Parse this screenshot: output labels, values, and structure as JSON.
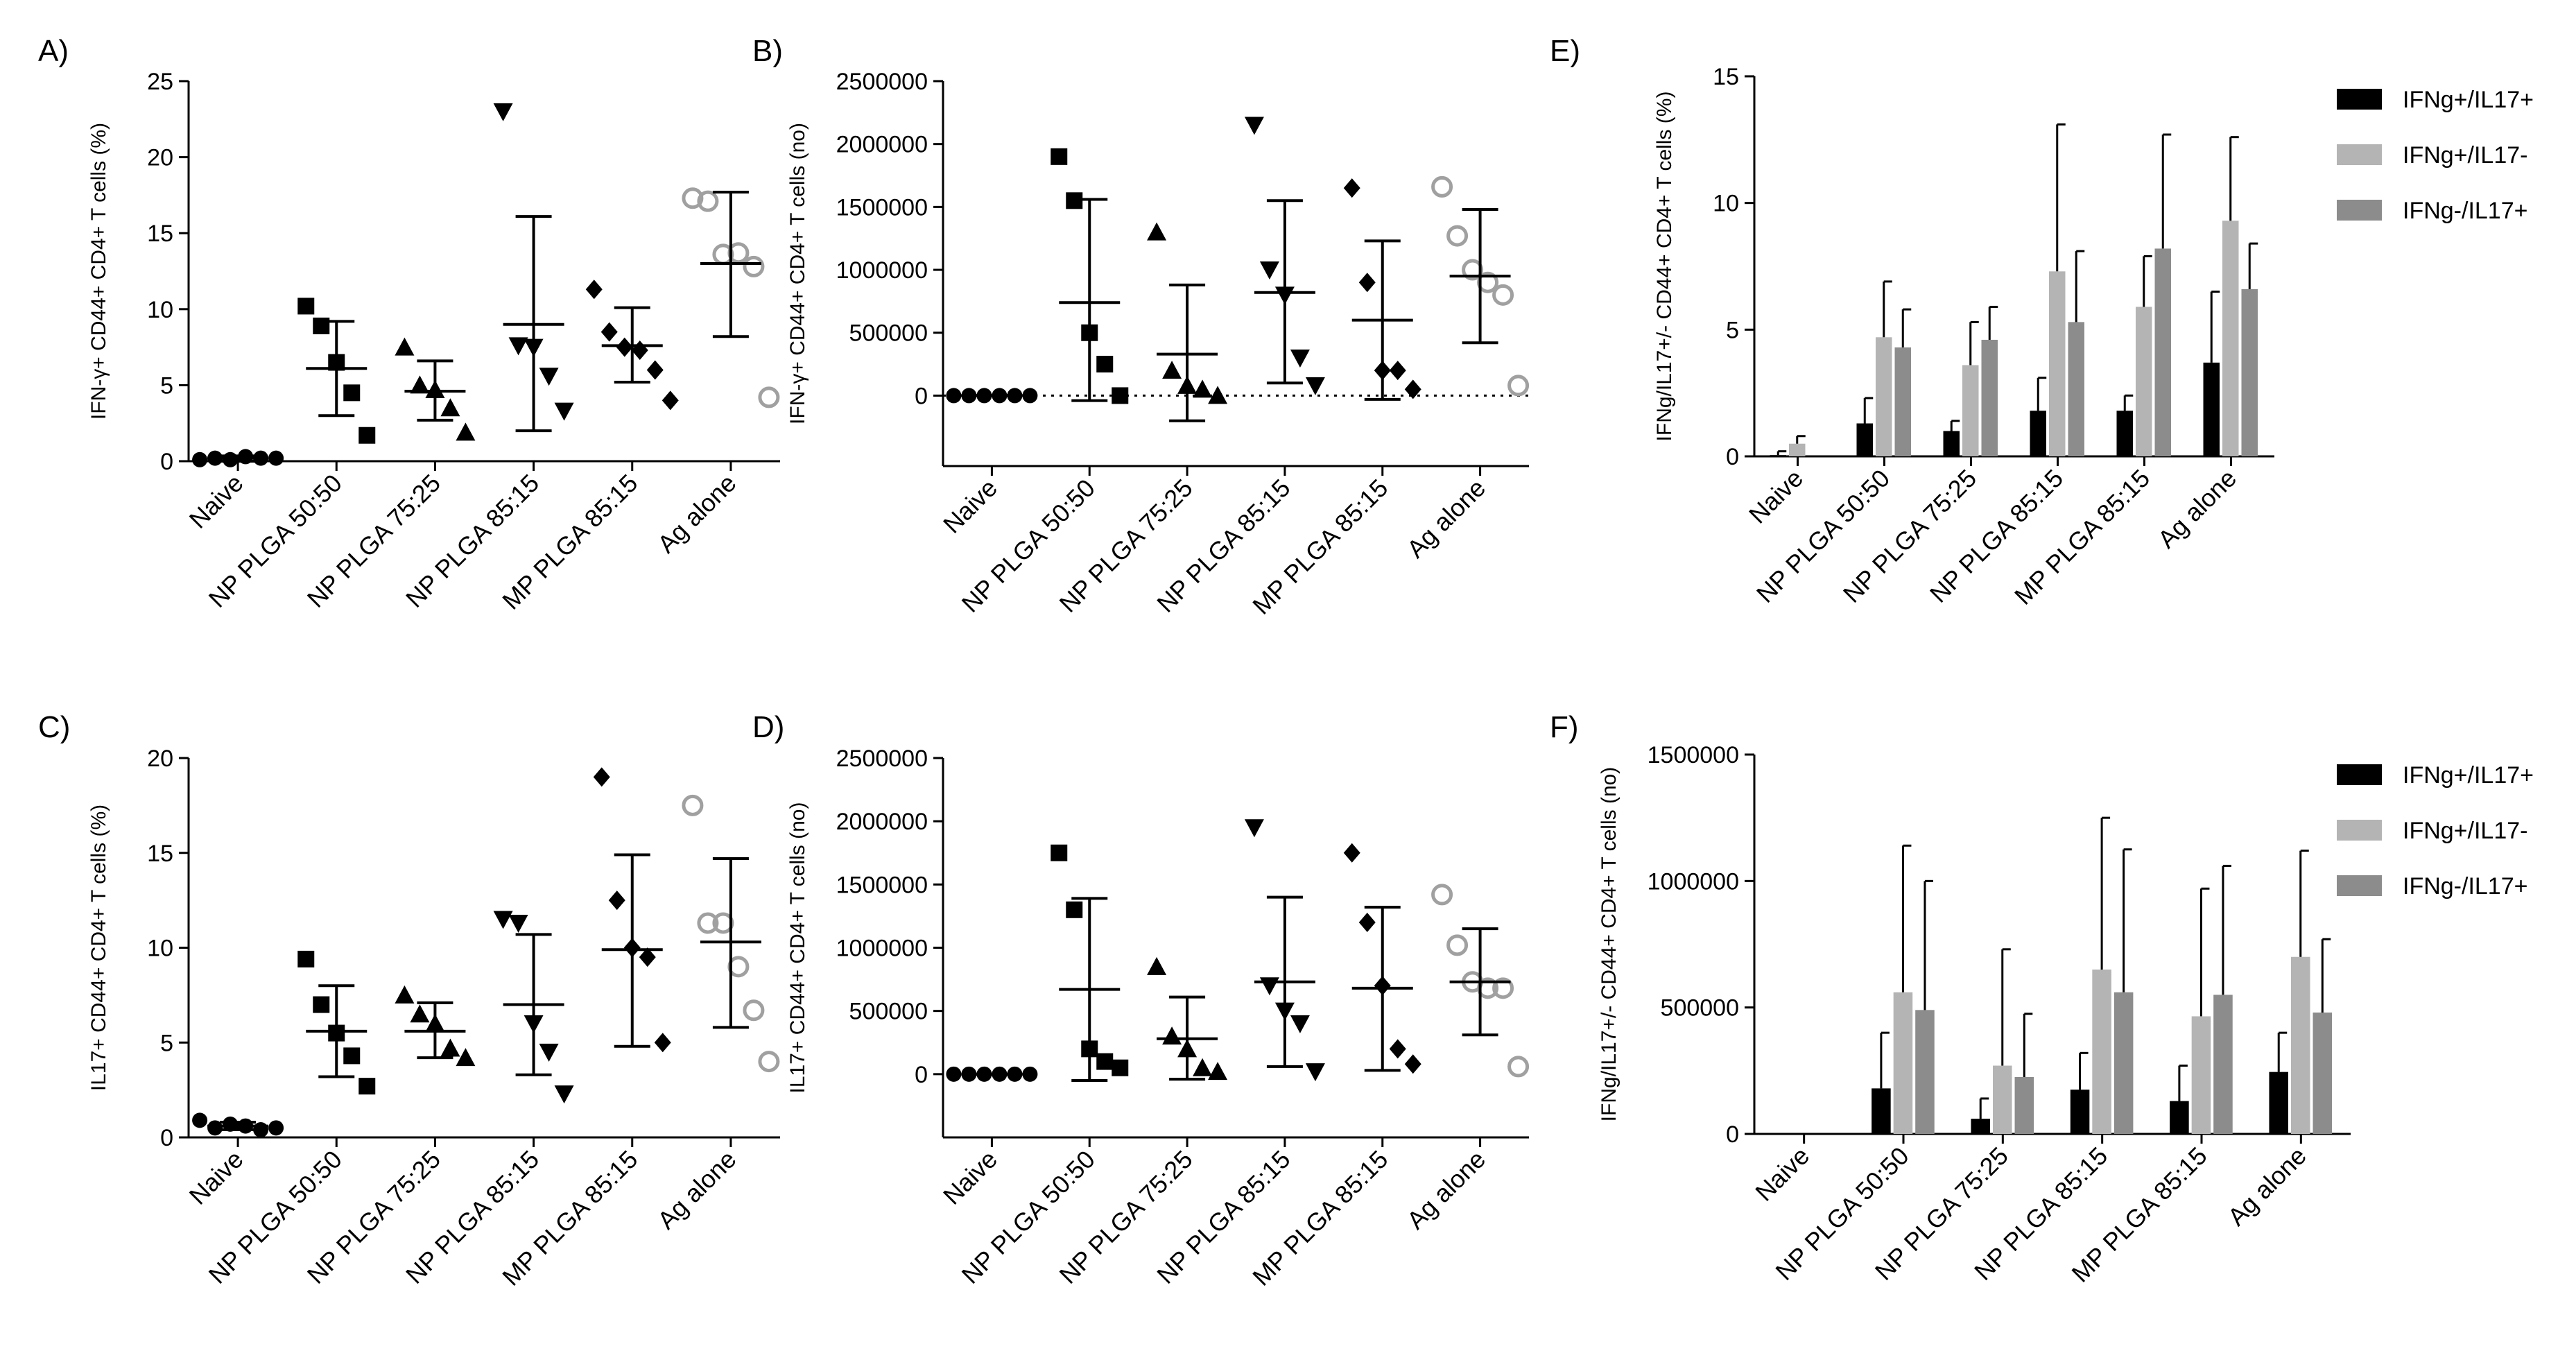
{
  "figure": {
    "categories": [
      "Naive",
      "NP PLGA 50:50",
      "NP PLGA 75:25",
      "NP PLGA 85:15",
      "MP PLGA 85:15",
      "Ag alone"
    ],
    "colors": {
      "black": "#000000",
      "light_gray": "#b4b4b4",
      "mid_gray": "#8c8c8c",
      "open_gray": "#a0a0a0"
    }
  },
  "chart_data": [
    {
      "id": "A",
      "panel_label": "A)",
      "type": "scatter",
      "ylabel": "IFN-γ+ CD44+ CD4+ T cells (%)",
      "ylim": [
        0,
        25
      ],
      "yticks": [
        "0",
        "5",
        "10",
        "15",
        "20",
        "25"
      ],
      "categories": [
        "Naive",
        "NP PLGA 50:50",
        "NP PLGA 75:25",
        "NP PLGA 85:15",
        "MP PLGA 85:15",
        "Ag alone"
      ],
      "series": [
        {
          "name": "Naive",
          "marker": "circle",
          "color": "#000000",
          "values": [
            0.1,
            0.2,
            0.1,
            0.3,
            0.2,
            0.2
          ],
          "mean": 0.2,
          "sd_low": 0.0,
          "sd_high": 0.35
        },
        {
          "name": "NP PLGA 50:50",
          "marker": "square",
          "color": "#000000",
          "values": [
            10.2,
            8.9,
            6.5,
            4.5,
            1.7
          ],
          "mean": 6.1,
          "sd_low": 3.0,
          "sd_high": 9.2
        },
        {
          "name": "NP PLGA 75:25",
          "marker": "triangle-up",
          "color": "#000000",
          "values": [
            7.5,
            5.0,
            4.7,
            3.5,
            1.9
          ],
          "mean": 4.6,
          "sd_low": 2.7,
          "sd_high": 6.6
        },
        {
          "name": "NP PLGA 85:15",
          "marker": "triangle-down",
          "color": "#000000",
          "values": [
            23.0,
            7.6,
            7.5,
            5.6,
            3.3
          ],
          "mean": 9.0,
          "sd_low": 2.0,
          "sd_high": 16.1
        },
        {
          "name": "MP PLGA 85:15",
          "marker": "diamond",
          "color": "#000000",
          "values": [
            11.3,
            8.5,
            7.5,
            7.3,
            6.0,
            4.0
          ],
          "mean": 7.6,
          "sd_low": 5.2,
          "sd_high": 10.1
        },
        {
          "name": "Ag alone",
          "marker": "open-circle",
          "color": "#a0a0a0",
          "values": [
            17.3,
            17.1,
            13.6,
            13.7,
            12.8,
            4.2
          ],
          "mean": 13.0,
          "sd_low": 8.2,
          "sd_high": 17.7
        }
      ]
    },
    {
      "id": "B",
      "panel_label": "B)",
      "type": "scatter",
      "ylabel": "IFN-γ+ CD44+ CD4+ T cells (no)",
      "ylim": [
        -560000,
        2500000
      ],
      "yticks": [
        "0",
        "500000",
        "1000000",
        "1500000",
        "2000000",
        "2500000"
      ],
      "zero_line": "dotted",
      "categories": [
        "Naive",
        "NP PLGA 50:50",
        "NP PLGA 75:25",
        "NP PLGA 85:15",
        "MP PLGA 85:15",
        "Ag alone"
      ],
      "series": [
        {
          "name": "Naive",
          "marker": "circle",
          "color": "#000000",
          "values": [
            0,
            0,
            0,
            0,
            0,
            0
          ],
          "mean": 0,
          "sd_low": 0,
          "sd_high": 0
        },
        {
          "name": "NP PLGA 50:50",
          "marker": "square",
          "color": "#000000",
          "values": [
            1900000,
            1550000,
            500000,
            250000,
            0
          ],
          "mean": 740000,
          "sd_low": -40000,
          "sd_high": 1560000
        },
        {
          "name": "NP PLGA 75:25",
          "marker": "triangle-up",
          "color": "#000000",
          "values": [
            1300000,
            200000,
            80000,
            50000,
            0
          ],
          "mean": 330000,
          "sd_low": -200000,
          "sd_high": 880000
        },
        {
          "name": "NP PLGA 85:15",
          "marker": "triangle-down",
          "color": "#000000",
          "values": [
            2150000,
            1000000,
            800000,
            300000,
            80000
          ],
          "mean": 820000,
          "sd_low": 100000,
          "sd_high": 1550000
        },
        {
          "name": "MP PLGA 85:15",
          "marker": "diamond",
          "color": "#000000",
          "values": [
            1650000,
            900000,
            200000,
            200000,
            50000
          ],
          "mean": 600000,
          "sd_low": -30000,
          "sd_high": 1230000
        },
        {
          "name": "Ag alone",
          "marker": "open-circle",
          "color": "#a0a0a0",
          "values": [
            1660000,
            1270000,
            1000000,
            900000,
            800000,
            80000
          ],
          "mean": 950000,
          "sd_low": 420000,
          "sd_high": 1480000
        }
      ]
    },
    {
      "id": "C",
      "panel_label": "C)",
      "type": "scatter",
      "ylabel": "IL17+ CD44+ CD4+ T cells (%)",
      "ylim": [
        0,
        20
      ],
      "yticks": [
        "0",
        "5",
        "10",
        "15",
        "20"
      ],
      "categories": [
        "Naive",
        "NP PLGA 50:50",
        "NP PLGA 75:25",
        "NP PLGA 85:15",
        "MP PLGA 85:15",
        "Ag alone"
      ],
      "series": [
        {
          "name": "Naive",
          "marker": "circle",
          "color": "#000000",
          "values": [
            0.9,
            0.5,
            0.7,
            0.6,
            0.4,
            0.5
          ],
          "mean": 0.6,
          "sd_low": 0.4,
          "sd_high": 0.8
        },
        {
          "name": "NP PLGA 50:50",
          "marker": "square",
          "color": "#000000",
          "values": [
            9.4,
            7.0,
            5.5,
            4.3,
            2.7
          ],
          "mean": 5.6,
          "sd_low": 3.2,
          "sd_high": 8.0
        },
        {
          "name": "NP PLGA 75:25",
          "marker": "triangle-up",
          "color": "#000000",
          "values": [
            7.5,
            6.5,
            6.0,
            4.7,
            4.2
          ],
          "mean": 5.6,
          "sd_low": 4.2,
          "sd_high": 7.1
        },
        {
          "name": "NP PLGA 85:15",
          "marker": "triangle-down",
          "color": "#000000",
          "values": [
            11.5,
            11.3,
            6.0,
            4.5,
            2.3
          ],
          "mean": 7.0,
          "sd_low": 3.3,
          "sd_high": 10.7
        },
        {
          "name": "MP PLGA 85:15",
          "marker": "diamond",
          "color": "#000000",
          "values": [
            19.0,
            12.5,
            10.0,
            9.5,
            5.0
          ],
          "mean": 9.9,
          "sd_low": 4.8,
          "sd_high": 14.9
        },
        {
          "name": "Ag alone",
          "marker": "open-circle",
          "color": "#a0a0a0",
          "values": [
            17.5,
            11.3,
            11.3,
            9.0,
            6.7,
            4.0
          ],
          "mean": 10.3,
          "sd_low": 5.8,
          "sd_high": 14.7
        }
      ]
    },
    {
      "id": "D",
      "panel_label": "D)",
      "type": "scatter",
      "ylabel": "IL17+ CD44+ CD4+ T cells (no)",
      "ylim": [
        -500000,
        2500000
      ],
      "yticks": [
        "0",
        "500000",
        "1000000",
        "1500000",
        "2000000",
        "2500000"
      ],
      "categories": [
        "Naive",
        "NP PLGA 50:50",
        "NP PLGA 75:25",
        "NP PLGA 85:15",
        "MP PLGA 85:15",
        "Ag alone"
      ],
      "series": [
        {
          "name": "Naive",
          "marker": "circle",
          "color": "#000000",
          "values": [
            0,
            0,
            0,
            0,
            0,
            0
          ],
          "mean": 0,
          "sd_low": 0,
          "sd_high": 0
        },
        {
          "name": "NP PLGA 50:50",
          "marker": "square",
          "color": "#000000",
          "values": [
            1750000,
            1300000,
            200000,
            100000,
            50000
          ],
          "mean": 670000,
          "sd_low": -50000,
          "sd_high": 1390000
        },
        {
          "name": "NP PLGA 75:25",
          "marker": "triangle-up",
          "color": "#000000",
          "values": [
            850000,
            300000,
            200000,
            50000,
            20000
          ],
          "mean": 280000,
          "sd_low": -40000,
          "sd_high": 610000
        },
        {
          "name": "NP PLGA 85:15",
          "marker": "triangle-down",
          "color": "#000000",
          "values": [
            1950000,
            700000,
            500000,
            400000,
            20000
          ],
          "mean": 730000,
          "sd_low": 60000,
          "sd_high": 1400000
        },
        {
          "name": "MP PLGA 85:15",
          "marker": "diamond",
          "color": "#000000",
          "values": [
            1750000,
            1200000,
            700000,
            200000,
            80000
          ],
          "mean": 680000,
          "sd_low": 30000,
          "sd_high": 1320000
        },
        {
          "name": "Ag alone",
          "marker": "open-circle",
          "color": "#a0a0a0",
          "values": [
            1420000,
            1020000,
            730000,
            680000,
            680000,
            60000
          ],
          "mean": 730000,
          "sd_low": 310000,
          "sd_high": 1150000
        }
      ]
    },
    {
      "id": "E",
      "panel_label": "E)",
      "type": "bar",
      "ylabel": "IFNg/IL17+/- CD44+ CD4+ T cells (%)",
      "ylim": [
        0,
        15
      ],
      "yticks": [
        "0",
        "5",
        "10",
        "15"
      ],
      "categories": [
        "Naive",
        "NP PLGA 50:50",
        "NP PLGA 75:25",
        "NP PLGA 85:15",
        "MP PLGA 85:15",
        "Ag alone"
      ],
      "legend": "top-right",
      "series": [
        {
          "name": "IFNg+/IL17+",
          "color": "#000000",
          "values": [
            0.05,
            1.3,
            1.0,
            1.8,
            1.8,
            3.7
          ],
          "errors": [
            0.2,
            2.3,
            1.4,
            3.1,
            2.4,
            6.5
          ]
        },
        {
          "name": "IFNg+/IL17-",
          "color": "#b4b4b4",
          "values": [
            0.5,
            4.7,
            3.6,
            7.3,
            5.9,
            9.3
          ],
          "errors": [
            0.8,
            6.9,
            5.3,
            13.1,
            7.9,
            12.6
          ]
        },
        {
          "name": "IFNg-/IL17+",
          "color": "#8c8c8c",
          "values": [
            0.0,
            4.3,
            4.6,
            5.3,
            8.2,
            6.6
          ],
          "errors": [
            0.0,
            5.8,
            5.9,
            8.1,
            12.7,
            8.4
          ]
        }
      ]
    },
    {
      "id": "F",
      "panel_label": "F)",
      "type": "bar",
      "ylabel": "IFNg/IL17+/- CD44+ CD4+ T cells (no)",
      "ylim": [
        0,
        1500000
      ],
      "yticks": [
        "0",
        "500000",
        "1000000",
        "1500000"
      ],
      "categories": [
        "Naive",
        "NP PLGA 50:50",
        "NP PLGA 75:25",
        "NP PLGA 85:15",
        "MP PLGA 85:15",
        "Ag alone"
      ],
      "legend": "top-right",
      "series": [
        {
          "name": "IFNg+/IL17+",
          "color": "#000000",
          "values": [
            0,
            180000,
            60000,
            175000,
            130000,
            245000
          ],
          "errors": [
            0,
            400000,
            140000,
            320000,
            270000,
            400000
          ]
        },
        {
          "name": "IFNg+/IL17-",
          "color": "#b4b4b4",
          "values": [
            0,
            560000,
            270000,
            650000,
            465000,
            700000
          ],
          "errors": [
            0,
            1140000,
            730000,
            1250000,
            970000,
            1120000
          ]
        },
        {
          "name": "IFNg-/IL17+",
          "color": "#8c8c8c",
          "values": [
            0,
            490000,
            225000,
            560000,
            550000,
            480000
          ],
          "errors": [
            0,
            1000000,
            475000,
            1125000,
            1060000,
            770000
          ]
        }
      ]
    }
  ]
}
